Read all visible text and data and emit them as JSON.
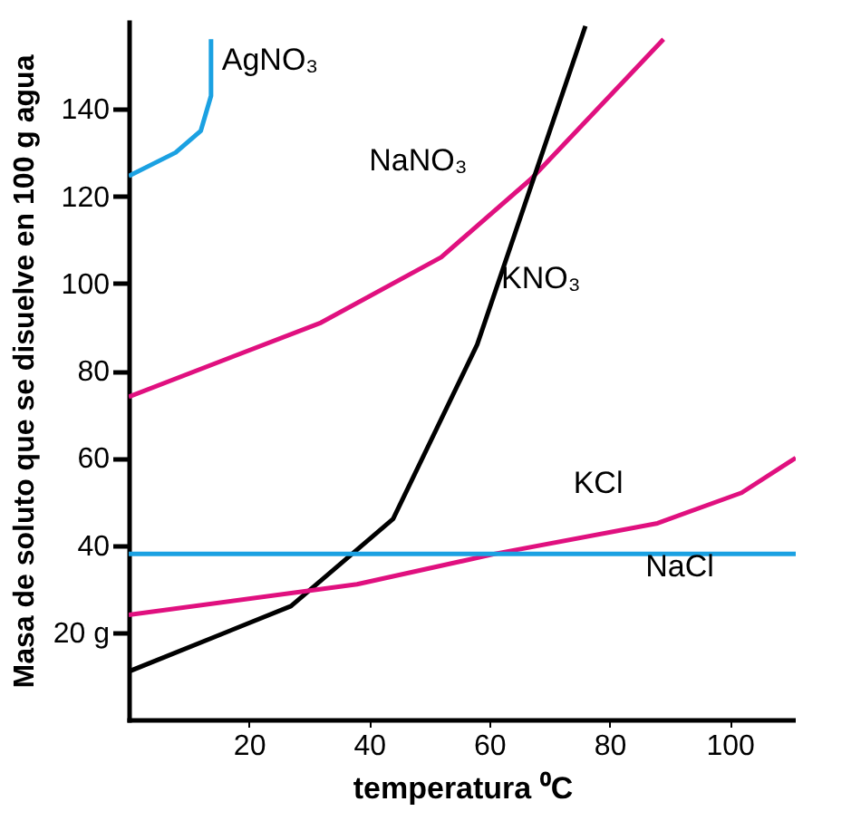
{
  "chart_data": {
    "type": "line",
    "xlabel": "temperatura ⁰C",
    "ylabel": "Masa de soluto que se disuelve en 100 g agua",
    "xlim": [
      0,
      111
    ],
    "ylim": [
      0,
      160
    ],
    "xticks": [
      20,
      40,
      60,
      80,
      100
    ],
    "yticks": [
      {
        "value": 20,
        "label": "20 g"
      },
      40,
      60,
      80,
      100,
      120,
      140
    ],
    "grid": false,
    "legend": false,
    "marker": "none",
    "line_style": "solid",
    "series": [
      {
        "name": "AgNO₃",
        "color": "#1ba1e2",
        "x": [
          0,
          7.8,
          12,
          13.7,
          13.7
        ],
        "values": [
          124.6,
          130,
          135,
          143,
          156
        ]
      },
      {
        "name": "NaNO₃",
        "color": "#e0107f",
        "x": [
          0,
          32,
          52,
          67,
          89
        ],
        "values": [
          74,
          91,
          106,
          124,
          156
        ]
      },
      {
        "name": "KNO₃",
        "color": "#000000",
        "x": [
          0,
          27,
          44,
          58,
          76
        ],
        "values": [
          11,
          26,
          46,
          86,
          159
        ]
      },
      {
        "name": "KCl",
        "color": "#e0107f",
        "x": [
          0,
          38,
          61,
          88,
          102,
          111
        ],
        "values": [
          24,
          31,
          38,
          45,
          52,
          60
        ]
      },
      {
        "name": "NaCl",
        "color": "#1ba1e2",
        "x": [
          0,
          111
        ],
        "values": [
          38,
          38
        ]
      }
    ]
  }
}
